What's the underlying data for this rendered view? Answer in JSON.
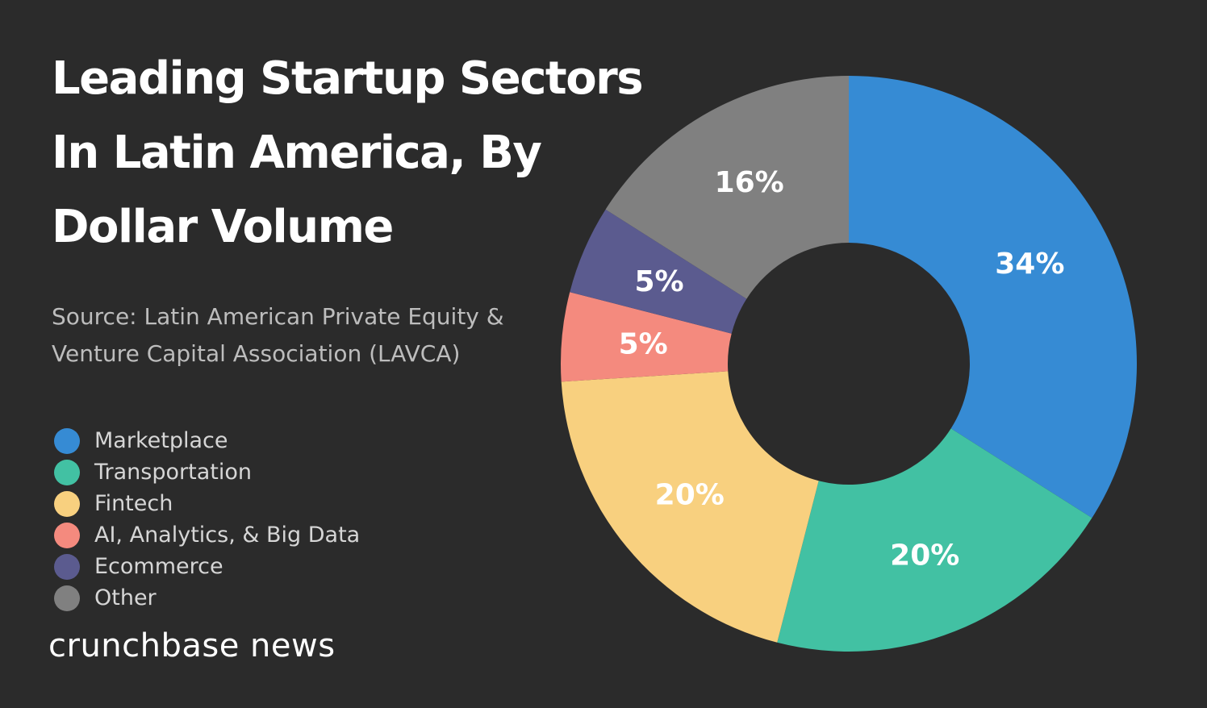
{
  "chart_data": {
    "type": "pie",
    "title_lines": [
      "Leading Startup Sectors",
      "In Latin America, By",
      "Dollar Volume"
    ],
    "source_lines": [
      "Source: Latin American Private Equity &",
      "Venture Capital Association (LAVCA)"
    ],
    "unit": "%",
    "hole": true,
    "categories": [
      "Marketplace",
      "Transportation",
      "Fintech",
      "AI, Analytics, & Big Data",
      "Ecommerce",
      "Other"
    ],
    "values": [
      34,
      20,
      20,
      5,
      5,
      16
    ],
    "labels": [
      "34%",
      "20%",
      "20%",
      "5%",
      "5%",
      "16%"
    ],
    "colors": [
      "#368bd4",
      "#42c1a3",
      "#f8d07f",
      "#f48a7e",
      "#5b5b8f",
      "#808080"
    ],
    "legend_position": "left"
  },
  "brand": "crunchbase news"
}
